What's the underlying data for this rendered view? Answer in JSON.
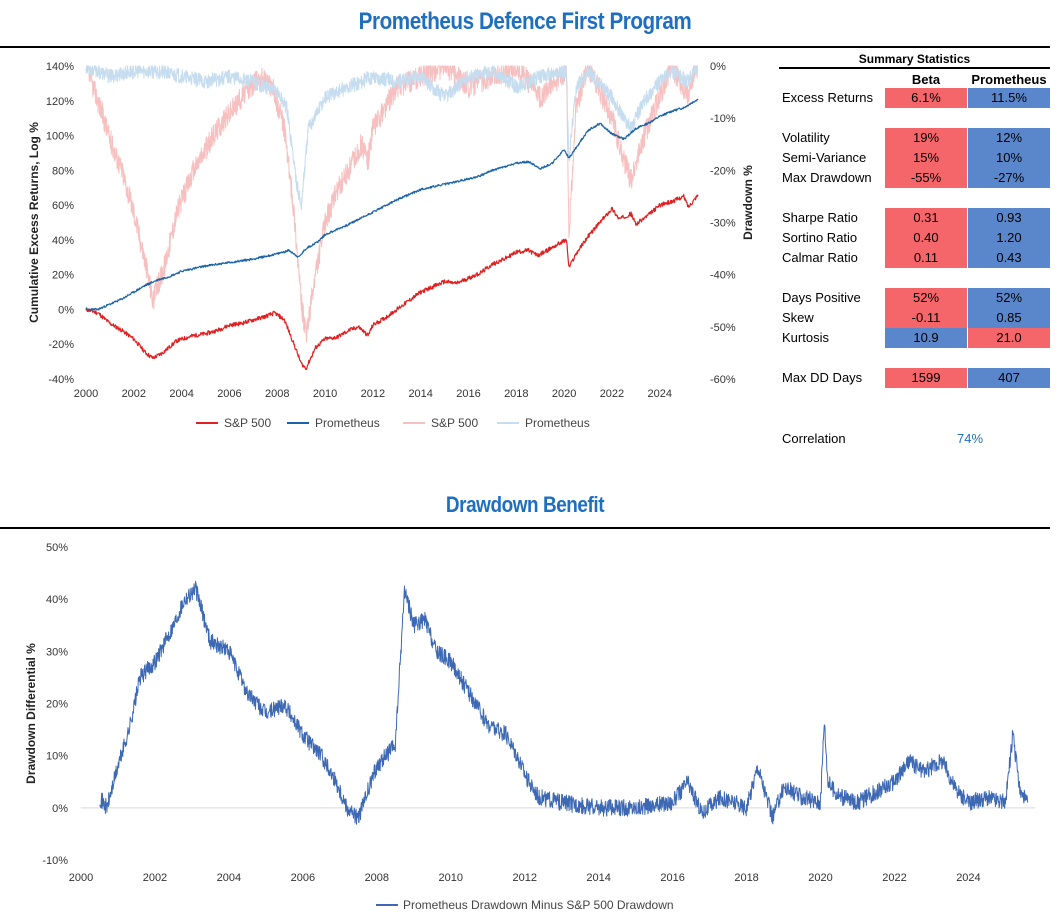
{
  "page": {
    "title": "Prometheus Defence First Program",
    "subtitle": "Drawdown Benefit"
  },
  "colors": {
    "sp500": "#e02020",
    "prometheus": "#1a63a8",
    "sp500_dd": "#f7c0c0",
    "prometheus_dd": "#c6dcef",
    "differential": "#3d69b4",
    "cell_red": "#f4666a",
    "cell_blue": "#5a86cc",
    "title": "#1f6fbf"
  },
  "chart_data": [
    {
      "type": "line",
      "ylabel": "Cumulative Excess Returns, Log %",
      "y2label": "Drawdown %",
      "xlim": [
        2000,
        2025.6
      ],
      "ylim": [
        -40,
        140
      ],
      "y2lim": [
        -60,
        0
      ],
      "x_ticks": [
        "2000",
        "2002",
        "2004",
        "2006",
        "2008",
        "2010",
        "2012",
        "2014",
        "2016",
        "2018",
        "2020",
        "2022",
        "2024"
      ],
      "y_ticks": [
        "140%",
        "120%",
        "100%",
        "80%",
        "60%",
        "40%",
        "20%",
        "0%",
        "-20%",
        "-40%"
      ],
      "y2_ticks": [
        "0%",
        "-10%",
        "-20%",
        "-30%",
        "-40%",
        "-50%",
        "-60%"
      ],
      "legend": [
        "S&P 500",
        "Prometheus",
        "S&P 500",
        "Prometheus"
      ],
      "legend_position": "bottom",
      "series": [
        {
          "name": "S&P 500",
          "axis": "left",
          "x": [
            2000,
            2000.5,
            2001,
            2001.5,
            2002,
            2002.5,
            2002.8,
            2003.2,
            2003.8,
            2004.5,
            2005,
            2005.5,
            2006,
            2006.5,
            2007,
            2007.5,
            2007.9,
            2008.3,
            2008.7,
            2009.0,
            2009.2,
            2009.6,
            2010,
            2010.5,
            2011,
            2011.4,
            2011.8,
            2012,
            2012.5,
            2013,
            2013.5,
            2014,
            2014.5,
            2015,
            2015.5,
            2016,
            2016.5,
            2017,
            2017.5,
            2018,
            2018.5,
            2018.9,
            2019.3,
            2019.8,
            2020.1,
            2020.2,
            2020.5,
            2021,
            2021.5,
            2022,
            2022.3,
            2022.8,
            2023,
            2023.5,
            2024,
            2024.5,
            2025,
            2025.2,
            2025.6
          ],
          "y": [
            0,
            -2,
            -8,
            -12,
            -17,
            -25,
            -28,
            -25,
            -18,
            -15,
            -14,
            -12,
            -9,
            -8,
            -6,
            -4,
            -2,
            -6,
            -20,
            -31,
            -34,
            -22,
            -17,
            -16,
            -12,
            -10,
            -15,
            -9,
            -5,
            0,
            5,
            10,
            13,
            16,
            15,
            18,
            21,
            26,
            29,
            33,
            34,
            31,
            34,
            38,
            40,
            24,
            32,
            42,
            50,
            58,
            52,
            55,
            49,
            54,
            60,
            62,
            65,
            59,
            66
          ]
        },
        {
          "name": "Prometheus",
          "axis": "left",
          "x": [
            2000,
            2000.5,
            2001,
            2001.5,
            2002,
            2002.5,
            2003,
            2003.5,
            2004,
            2005,
            2006,
            2007,
            2008,
            2008.5,
            2008.9,
            2009.2,
            2009.7,
            2010,
            2011,
            2012,
            2013,
            2014,
            2015,
            2016,
            2016.5,
            2017,
            2018,
            2018.5,
            2019,
            2019.5,
            2020,
            2020.2,
            2020.5,
            2021,
            2021.5,
            2022,
            2022.5,
            2023,
            2023.5,
            2024,
            2024.5,
            2025,
            2025.6
          ],
          "y": [
            0,
            0,
            3,
            6,
            10,
            14,
            17,
            19,
            22,
            25,
            27,
            29,
            32,
            34,
            30,
            35,
            39,
            43,
            49,
            56,
            63,
            69,
            72,
            75,
            77,
            80,
            84,
            85,
            81,
            84,
            92,
            87,
            93,
            103,
            107,
            101,
            98,
            104,
            107,
            111,
            114,
            116,
            121
          ]
        },
        {
          "name": "S&P 500",
          "axis": "right",
          "style": "drawdown",
          "x": [
            2000,
            2000.6,
            2001,
            2001.5,
            2002,
            2002.5,
            2002.8,
            2003.3,
            2003.8,
            2004.5,
            2005.5,
            2006.5,
            2007.3,
            2007.8,
            2008.3,
            2008.7,
            2009.0,
            2009.2,
            2009.6,
            2010,
            2010.5,
            2011,
            2011.5,
            2011.8,
            2012,
            2012.5,
            2013,
            2015,
            2016,
            2018,
            2019,
            2020.1,
            2020.2,
            2020.5,
            2021,
            2022,
            2022.5,
            2022.8,
            2023.3,
            2023.8,
            2024.5,
            2025.2,
            2025.4,
            2025.6
          ],
          "y": [
            0,
            -8,
            -14,
            -20,
            -28,
            -38,
            -45,
            -38,
            -28,
            -20,
            -12,
            -6,
            -2,
            -4,
            -12,
            -28,
            -45,
            -52,
            -40,
            -30,
            -24,
            -20,
            -15,
            -18,
            -12,
            -8,
            -4,
            0,
            -4,
            0,
            -6,
            -1,
            -32,
            -8,
            0,
            -10,
            -18,
            -22,
            -14,
            -8,
            0,
            -6,
            -2,
            0
          ]
        },
        {
          "name": "Prometheus",
          "axis": "right",
          "style": "drawdown",
          "x": [
            2000,
            2001,
            2002,
            2003,
            2004,
            2005,
            2006,
            2007,
            2008,
            2008.4,
            2008.8,
            2009.0,
            2009.3,
            2010,
            2011,
            2012,
            2013,
            2014,
            2015,
            2016,
            2017,
            2018,
            2019,
            2020.1,
            2020.2,
            2020.5,
            2021,
            2022,
            2022.5,
            2022.8,
            2023.3,
            2023.8,
            2024.5,
            2025.2,
            2025.6
          ],
          "y": [
            0,
            -2,
            -1,
            -1,
            -2,
            -3,
            -2,
            -3,
            -5,
            -8,
            -22,
            -27,
            -12,
            -6,
            -4,
            -2,
            -3,
            -2,
            -6,
            -2,
            -1,
            -4,
            -2,
            -1,
            -18,
            -4,
            -1,
            -6,
            -10,
            -12,
            -7,
            -4,
            -1,
            -3,
            0
          ]
        }
      ]
    },
    {
      "type": "line",
      "ylabel": "Drawdown Differential %",
      "xlim": [
        2000,
        2025.8
      ],
      "ylim": [
        -10,
        50
      ],
      "x_ticks": [
        "2000",
        "2002",
        "2004",
        "2006",
        "2008",
        "2010",
        "2012",
        "2014",
        "2016",
        "2018",
        "2020",
        "2022",
        "2024"
      ],
      "y_ticks": [
        "50%",
        "40%",
        "30%",
        "20%",
        "10%",
        "0%",
        "-10%"
      ],
      "legend": [
        "Prometheus Drawdown Minus S&P 500 Drawdown"
      ],
      "legend_position": "bottom",
      "series": [
        {
          "name": "Prometheus Drawdown Minus S&P 500 Drawdown",
          "x": [
            2000.5,
            2000.7,
            2001,
            2001.3,
            2001.6,
            2002,
            2002.5,
            2002.8,
            2003.1,
            2003.5,
            2004,
            2004.5,
            2005,
            2005.5,
            2006,
            2006.5,
            2006.9,
            2007.2,
            2007.5,
            2008,
            2008.5,
            2008.75,
            2009.0,
            2009.3,
            2009.6,
            2010,
            2010.5,
            2011,
            2011.5,
            2011.8,
            2012.1,
            2012.4,
            2013,
            2014,
            2015,
            2016,
            2016.4,
            2016.8,
            2017.3,
            2018,
            2018.3,
            2018.7,
            2019,
            2019.5,
            2020,
            2020.1,
            2020.2,
            2020.4,
            2020.6,
            2021,
            2021.5,
            2022,
            2022.4,
            2022.8,
            2023.3,
            2023.7,
            2024,
            2024.5,
            2025,
            2025.2,
            2025.4,
            2025.6
          ],
          "y": [
            2,
            0,
            8,
            15,
            25,
            28,
            35,
            40,
            42,
            32,
            30,
            22,
            18,
            20,
            14,
            10,
            5,
            0,
            -2,
            8,
            12,
            42,
            35,
            36,
            30,
            28,
            22,
            16,
            14,
            10,
            5,
            2,
            1,
            0,
            0,
            1,
            5,
            -1,
            2,
            0,
            8,
            -2,
            4,
            2,
            1,
            17,
            5,
            3,
            2,
            1,
            3,
            5,
            9,
            7,
            9,
            3,
            1,
            2,
            1,
            14,
            3,
            1
          ]
        }
      ]
    }
  ],
  "summary": {
    "title": "Summary Statistics",
    "col1": "Beta",
    "col2": "Prometheus",
    "rows": [
      {
        "label": "Excess Returns",
        "beta": "6.1%",
        "prometheus": "11.5%",
        "beta_color": "red",
        "prom_color": "blue"
      },
      {
        "label": "Volatility",
        "beta": "19%",
        "prometheus": "12%",
        "beta_color": "red",
        "prom_color": "blue"
      },
      {
        "label": "Semi-Variance",
        "beta": "15%",
        "prometheus": "10%",
        "beta_color": "red",
        "prom_color": "blue"
      },
      {
        "label": "Max Drawdown",
        "beta": "-55%",
        "prometheus": "-27%",
        "beta_color": "red",
        "prom_color": "blue"
      },
      {
        "label": "Sharpe Ratio",
        "beta": "0.31",
        "prometheus": "0.93",
        "beta_color": "red",
        "prom_color": "blue"
      },
      {
        "label": "Sortino Ratio",
        "beta": "0.40",
        "prometheus": "1.20",
        "beta_color": "red",
        "prom_color": "blue"
      },
      {
        "label": "Calmar Ratio",
        "beta": "0.11",
        "prometheus": "0.43",
        "beta_color": "red",
        "prom_color": "blue"
      },
      {
        "label": "Days Positive",
        "beta": "52%",
        "prometheus": "52%",
        "beta_color": "red",
        "prom_color": "blue"
      },
      {
        "label": "Skew",
        "beta": "-0.11",
        "prometheus": "0.85",
        "beta_color": "red",
        "prom_color": "blue"
      },
      {
        "label": "Kurtosis",
        "beta": "10.9",
        "prometheus": "21.0",
        "beta_color": "blue",
        "prom_color": "red"
      },
      {
        "label": "Max DD Days",
        "beta": "1599",
        "prometheus": "407",
        "beta_color": "red",
        "prom_color": "blue"
      }
    ],
    "correlation_label": "Correlation",
    "correlation_value": "74%"
  }
}
